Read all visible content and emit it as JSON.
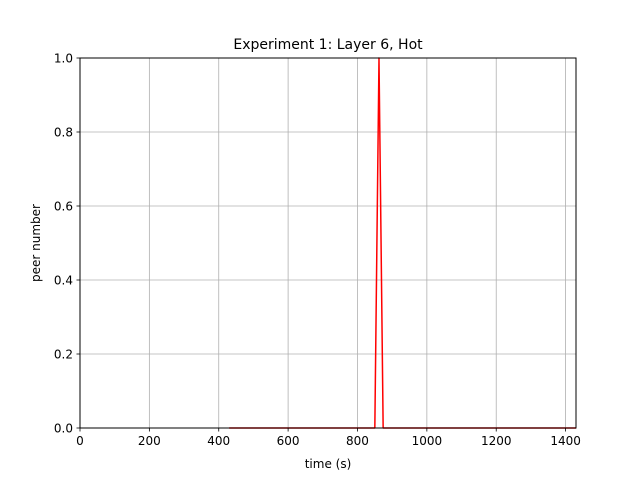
{
  "chart_data": {
    "type": "line",
    "title": "Experiment 1: Layer 6, Hot",
    "xlabel": "time (s)",
    "ylabel": "peer number",
    "xlim": [
      0,
      1430
    ],
    "ylim": [
      0.0,
      1.0
    ],
    "xticks": [
      0,
      200,
      400,
      600,
      800,
      1000,
      1200,
      1400
    ],
    "xtick_labels": [
      "0",
      "200",
      "400",
      "600",
      "800",
      "1000",
      "1200",
      "1400"
    ],
    "yticks": [
      0.0,
      0.2,
      0.4,
      0.6,
      0.8,
      1.0
    ],
    "ytick_labels": [
      "0.0",
      "0.2",
      "0.4",
      "0.6",
      "0.8",
      "1.0"
    ],
    "grid": true,
    "series": [
      {
        "color": "#ff0000",
        "x": [
          430,
          850,
          862,
          874,
          1430
        ],
        "y": [
          0,
          0,
          1,
          0,
          0
        ]
      }
    ]
  }
}
